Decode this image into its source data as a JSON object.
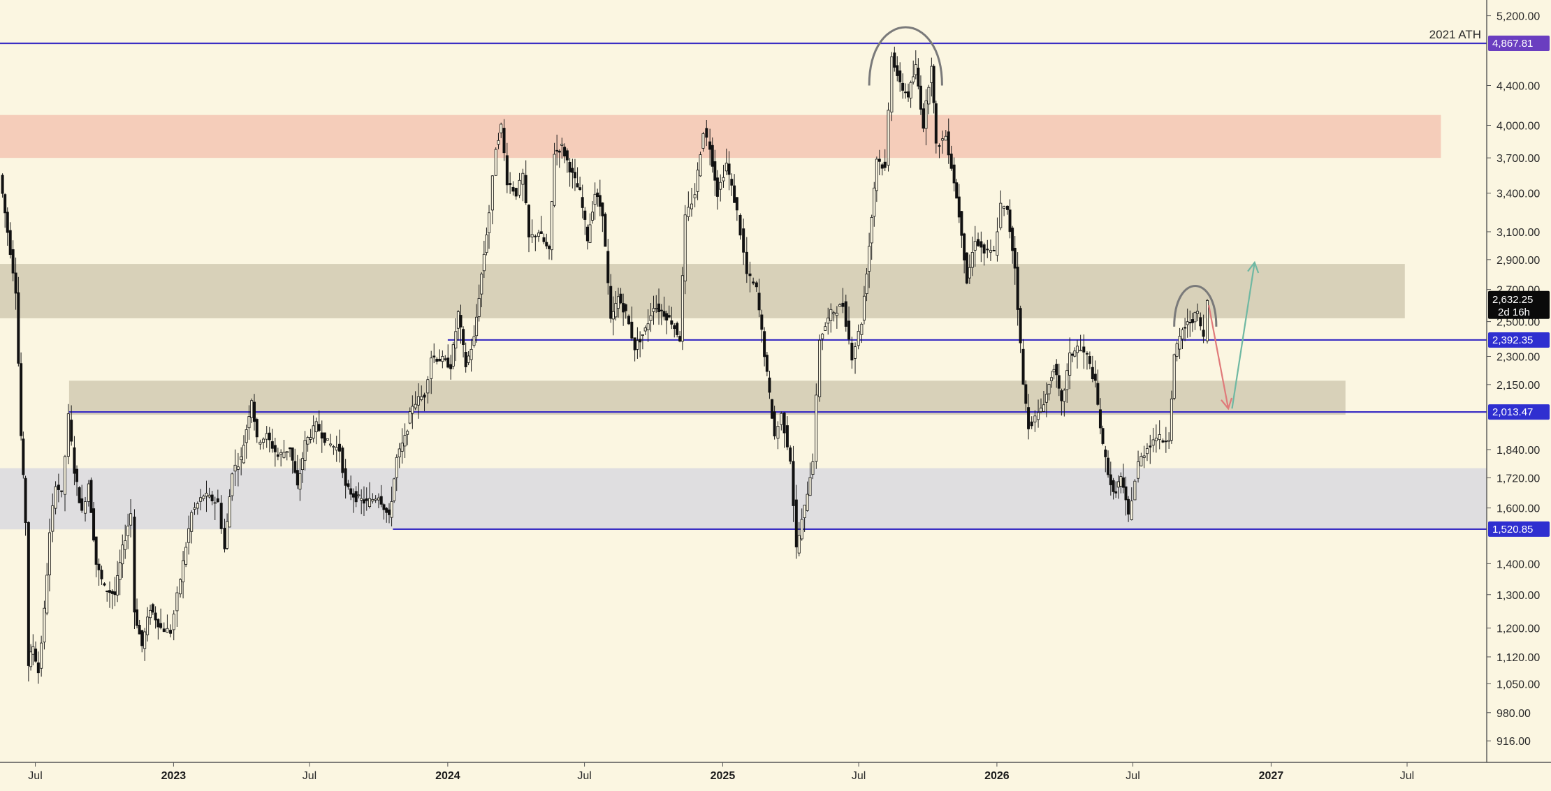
{
  "chart_data": {
    "type": "candlestick",
    "title": "",
    "xlabel": "",
    "ylabel": "",
    "y_scale": "log",
    "ylim": [
      870,
      5400
    ],
    "x_range": [
      "2022-05-15",
      "2027-10-15"
    ],
    "grid": false,
    "y_ticks": [
      {
        "value": 916,
        "label": "916.00"
      },
      {
        "value": 980,
        "label": "980.00"
      },
      {
        "value": 1050,
        "label": "1,050.00"
      },
      {
        "value": 1120,
        "label": "1,120.00"
      },
      {
        "value": 1200,
        "label": "1,200.00"
      },
      {
        "value": 1300,
        "label": "1,300.00"
      },
      {
        "value": 1400,
        "label": "1,400.00"
      },
      {
        "value": 1600,
        "label": "1,600.00"
      },
      {
        "value": 1720,
        "label": "1,720.00"
      },
      {
        "value": 1840,
        "label": "1,840.00"
      },
      {
        "value": 2150,
        "label": "2,150.00"
      },
      {
        "value": 2300,
        "label": "2,300.00"
      },
      {
        "value": 2500,
        "label": "2,500.00"
      },
      {
        "value": 2700,
        "label": "2,700.00"
      },
      {
        "value": 2900,
        "label": "2,900.00"
      },
      {
        "value": 3100,
        "label": "3,100.00"
      },
      {
        "value": 3400,
        "label": "3,400.00"
      },
      {
        "value": 3700,
        "label": "3,700.00"
      },
      {
        "value": 4000,
        "label": "4,000.00"
      },
      {
        "value": 4400,
        "label": "4,400.00"
      },
      {
        "value": 5200,
        "label": "5,200.00"
      }
    ],
    "x_ticks": [
      {
        "date": "2022-07-01",
        "label": "Jul",
        "major": false
      },
      {
        "date": "2023-01-01",
        "label": "2023",
        "major": true
      },
      {
        "date": "2023-07-01",
        "label": "Jul",
        "major": false
      },
      {
        "date": "2024-01-01",
        "label": "2024",
        "major": true
      },
      {
        "date": "2024-07-01",
        "label": "Jul",
        "major": false
      },
      {
        "date": "2025-01-01",
        "label": "2025",
        "major": true
      },
      {
        "date": "2025-07-01",
        "label": "Jul",
        "major": false
      },
      {
        "date": "2026-01-01",
        "label": "2026",
        "major": true
      },
      {
        "date": "2026-07-01",
        "label": "Jul",
        "major": false
      },
      {
        "date": "2027-01-01",
        "label": "2027",
        "major": true
      },
      {
        "date": "2027-07-01",
        "label": "Jul",
        "major": false
      }
    ],
    "price_path": [
      [
        "2022-05-15",
        3550
      ],
      [
        "2022-05-25",
        3100
      ],
      [
        "2022-06-05",
        2700
      ],
      [
        "2022-06-12",
        1900
      ],
      [
        "2022-06-18",
        1550
      ],
      [
        "2022-06-22",
        1100
      ],
      [
        "2022-06-28",
        1150
      ],
      [
        "2022-07-05",
        1080
      ],
      [
        "2022-07-13",
        1250
      ],
      [
        "2022-07-20",
        1500
      ],
      [
        "2022-07-28",
        1700
      ],
      [
        "2022-08-05",
        1650
      ],
      [
        "2022-08-14",
        1990
      ],
      [
        "2022-08-22",
        1750
      ],
      [
        "2022-09-01",
        1580
      ],
      [
        "2022-09-10",
        1700
      ],
      [
        "2022-09-20",
        1400
      ],
      [
        "2022-10-01",
        1320
      ],
      [
        "2022-10-15",
        1300
      ],
      [
        "2022-10-25",
        1450
      ],
      [
        "2022-11-05",
        1580
      ],
      [
        "2022-11-10",
        1250
      ],
      [
        "2022-11-20",
        1150
      ],
      [
        "2022-12-01",
        1260
      ],
      [
        "2022-12-15",
        1200
      ],
      [
        "2022-12-28",
        1190
      ],
      [
        "2023-01-10",
        1350
      ],
      [
        "2023-01-25",
        1580
      ],
      [
        "2023-02-10",
        1650
      ],
      [
        "2023-03-01",
        1620
      ],
      [
        "2023-03-10",
        1450
      ],
      [
        "2023-03-20",
        1750
      ],
      [
        "2023-04-01",
        1800
      ],
      [
        "2023-04-15",
        2080
      ],
      [
        "2023-04-22",
        1880
      ],
      [
        "2023-05-05",
        1900
      ],
      [
        "2023-05-20",
        1810
      ],
      [
        "2023-06-05",
        1850
      ],
      [
        "2023-06-15",
        1680
      ],
      [
        "2023-06-25",
        1870
      ],
      [
        "2023-07-10",
        1950
      ],
      [
        "2023-07-25",
        1870
      ],
      [
        "2023-08-10",
        1840
      ],
      [
        "2023-08-18",
        1680
      ],
      [
        "2023-09-01",
        1640
      ],
      [
        "2023-09-15",
        1620
      ],
      [
        "2023-10-01",
        1650
      ],
      [
        "2023-10-15",
        1560
      ],
      [
        "2023-10-25",
        1800
      ],
      [
        "2023-11-05",
        1890
      ],
      [
        "2023-11-15",
        2050
      ],
      [
        "2023-12-01",
        2100
      ],
      [
        "2023-12-10",
        2300
      ],
      [
        "2023-12-25",
        2280
      ],
      [
        "2024-01-05",
        2250
      ],
      [
        "2024-01-15",
        2550
      ],
      [
        "2024-01-25",
        2250
      ],
      [
        "2024-02-05",
        2400
      ],
      [
        "2024-02-15",
        2800
      ],
      [
        "2024-02-25",
        3250
      ],
      [
        "2024-03-05",
        3800
      ],
      [
        "2024-03-12",
        3990
      ],
      [
        "2024-03-20",
        3500
      ],
      [
        "2024-04-01",
        3400
      ],
      [
        "2024-04-10",
        3550
      ],
      [
        "2024-04-18",
        3050
      ],
      [
        "2024-05-01",
        3100
      ],
      [
        "2024-05-15",
        2950
      ],
      [
        "2024-05-22",
        3750
      ],
      [
        "2024-06-01",
        3800
      ],
      [
        "2024-06-15",
        3550
      ],
      [
        "2024-06-25",
        3400
      ],
      [
        "2024-07-05",
        3050
      ],
      [
        "2024-07-15",
        3400
      ],
      [
        "2024-07-25",
        3250
      ],
      [
        "2024-08-05",
        2500
      ],
      [
        "2024-08-15",
        2650
      ],
      [
        "2024-08-25",
        2550
      ],
      [
        "2024-09-06",
        2350
      ],
      [
        "2024-09-20",
        2450
      ],
      [
        "2024-10-01",
        2600
      ],
      [
        "2024-10-15",
        2550
      ],
      [
        "2024-10-25",
        2500
      ],
      [
        "2024-11-05",
        2400
      ],
      [
        "2024-11-12",
        3200
      ],
      [
        "2024-11-25",
        3400
      ],
      [
        "2024-12-06",
        3950
      ],
      [
        "2024-12-15",
        3800
      ],
      [
        "2024-12-25",
        3400
      ],
      [
        "2025-01-06",
        3650
      ],
      [
        "2025-01-20",
        3250
      ],
      [
        "2025-02-02",
        2800
      ],
      [
        "2025-02-15",
        2700
      ],
      [
        "2025-03-01",
        2200
      ],
      [
        "2025-03-11",
        1900
      ],
      [
        "2025-03-20",
        2000
      ],
      [
        "2025-04-01",
        1800
      ],
      [
        "2025-04-09",
        1450
      ],
      [
        "2025-04-20",
        1600
      ],
      [
        "2025-05-01",
        1800
      ],
      [
        "2025-05-10",
        2400
      ],
      [
        "2025-05-25",
        2550
      ],
      [
        "2025-06-10",
        2600
      ],
      [
        "2025-06-22",
        2300
      ],
      [
        "2025-07-05",
        2500
      ],
      [
        "2025-07-15",
        3000
      ],
      [
        "2025-07-25",
        3700
      ],
      [
        "2025-08-05",
        3600
      ],
      [
        "2025-08-14",
        4750
      ],
      [
        "2025-08-25",
        4400
      ],
      [
        "2025-09-05",
        4300
      ],
      [
        "2025-09-15",
        4600
      ],
      [
        "2025-09-25",
        4000
      ],
      [
        "2025-10-06",
        4650
      ],
      [
        "2025-10-12",
        3800
      ],
      [
        "2025-10-25",
        3900
      ],
      [
        "2025-11-05",
        3500
      ],
      [
        "2025-11-15",
        3100
      ],
      [
        "2025-11-22",
        2750
      ],
      [
        "2025-12-03",
        3050
      ],
      [
        "2025-12-15",
        2950
      ],
      [
        "2025-12-28",
        2950
      ],
      [
        "2026-01-06",
        3300
      ],
      [
        "2026-01-15",
        3250
      ],
      [
        "2026-01-25",
        2850
      ],
      [
        "2026-02-05",
        2150
      ],
      [
        "2026-02-12",
        1950
      ],
      [
        "2026-02-25",
        2000
      ],
      [
        "2026-03-08",
        2100
      ],
      [
        "2026-03-18",
        2250
      ],
      [
        "2026-03-28",
        2050
      ],
      [
        "2026-04-08",
        2300
      ],
      [
        "2026-04-18",
        2350
      ],
      [
        "2026-05-01",
        2300
      ],
      [
        "2026-05-12",
        2150
      ],
      [
        "2026-05-22",
        1850
      ],
      [
        "2026-06-05",
        1650
      ],
      [
        "2026-06-15",
        1720
      ],
      [
        "2026-06-25",
        1570
      ],
      [
        "2026-07-08",
        1780
      ],
      [
        "2026-07-20",
        1850
      ],
      [
        "2026-08-01",
        1900
      ],
      [
        "2026-08-10",
        1880
      ],
      [
        "2026-08-18",
        1900
      ],
      [
        "2026-08-25",
        2300
      ],
      [
        "2026-09-05",
        2450
      ],
      [
        "2026-09-15",
        2500
      ],
      [
        "2026-09-25",
        2550
      ],
      [
        "2026-10-03",
        2400
      ],
      [
        "2026-10-08",
        2632
      ]
    ],
    "horizontal_lines": [
      {
        "value": 4867.81,
        "label": "4,867.81",
        "start": "2022-05-15",
        "badge": "#6a3ec0"
      },
      {
        "value": 2392.35,
        "label": "2,392.35",
        "start": "2024-01-01",
        "badge": "#2f2fd0"
      },
      {
        "value": 2013.47,
        "label": "2,013.47",
        "start": "2022-08-15",
        "badge": "#2f2fd0"
      },
      {
        "value": 1520.85,
        "label": "1,520.85",
        "start": "2023-10-20",
        "badge": "#2f2fd0"
      }
    ],
    "line_color": "#3b2fc4",
    "zones": [
      {
        "name": "resistance",
        "low": 3700,
        "high": 4100,
        "start": "2022-05-15",
        "end": "2027-08-15",
        "color": "#f4c9b6"
      },
      {
        "name": "mid-upper",
        "low": 2520,
        "high": 2870,
        "start": "2022-05-15",
        "end": "2027-06-28",
        "color": "#d4cdb5"
      },
      {
        "name": "mid-lower",
        "low": 2000,
        "high": 2170,
        "start": "2022-08-15",
        "end": "2027-04-10",
        "color": "#d4cdb5"
      },
      {
        "name": "support",
        "low": 1520,
        "high": 1760,
        "start": "2022-05-15",
        "end": "2027-10-15",
        "color": "#dcdce0"
      }
    ],
    "annotations": {
      "ath_label": "2021 ATH",
      "current_price": {
        "value": 2632.25,
        "label": "2,632.25",
        "countdown": "2d 16h",
        "badge": "#0a0a0a"
      },
      "arcs": [
        {
          "start": "2025-07-15",
          "end": "2025-10-20",
          "base": 4400,
          "peak": 5050
        },
        {
          "start": "2026-08-25",
          "end": "2026-10-20",
          "base": 2470,
          "peak": 2720
        }
      ],
      "arrow_down": {
        "from": [
          "2026-10-10",
          2600
        ],
        "to": [
          "2026-11-05",
          2030
        ],
        "color": "#e07a7a"
      },
      "arrow_up": {
        "from": [
          "2026-11-10",
          2030
        ],
        "to": [
          "2026-12-10",
          2880
        ],
        "color": "#6fb8a2"
      }
    }
  }
}
